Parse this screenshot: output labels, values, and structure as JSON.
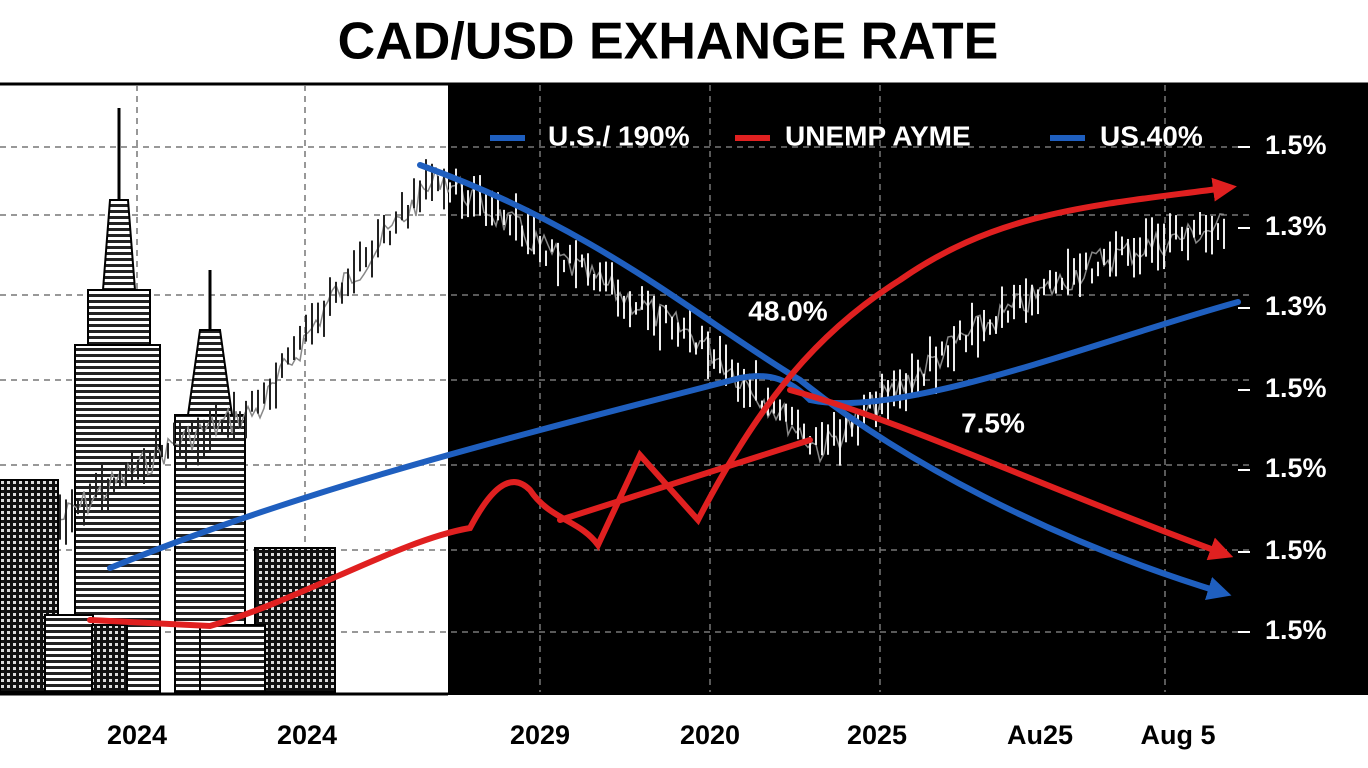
{
  "title": "CAD/USD EXHANGE RATE",
  "legend": [
    "U.S./ 190%",
    "UNEMP AYME",
    "US.40%"
  ],
  "annotations": [
    "48.0%",
    "7.5%"
  ],
  "x_labels": [
    "2024",
    "2024",
    "2029",
    "2020",
    "2025",
    "Au25",
    "Aug 5"
  ],
  "y_labels": [
    "1.5%",
    "1.3%",
    "1.3%",
    "1.5%",
    "1.5%",
    "1.5%",
    "1.5%"
  ]
}
